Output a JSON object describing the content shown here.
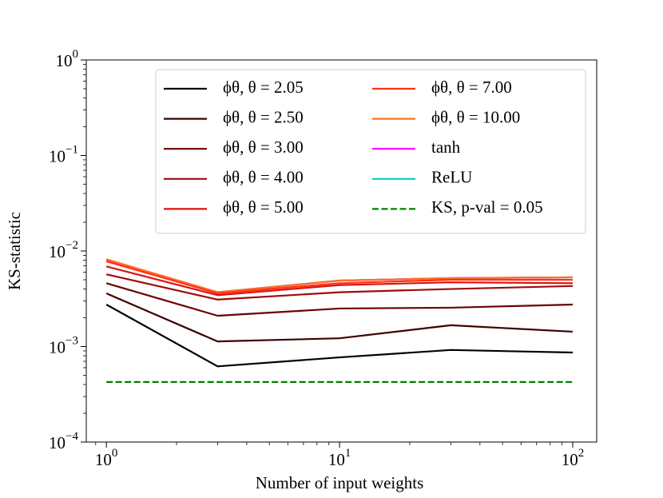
{
  "chart_data": {
    "type": "line",
    "xlabel": "Number of input weights",
    "ylabel": "KS-statistic",
    "x": [
      1,
      3,
      10,
      30,
      100
    ],
    "xlim": [
      0.82,
      126.7
    ],
    "ylim": [
      0.0001,
      1
    ],
    "xscale": "log",
    "yscale": "log",
    "xticks": [
      {
        "value": 1,
        "label": "10",
        "exponent": "0"
      },
      {
        "value": 10,
        "label": "10",
        "exponent": "1"
      },
      {
        "value": 100,
        "label": "10",
        "exponent": "2"
      }
    ],
    "yticks": [
      {
        "value": 0.0001,
        "label": "10",
        "exponent": "−4"
      },
      {
        "value": 0.001,
        "label": "10",
        "exponent": "−3"
      },
      {
        "value": 0.01,
        "label": "10",
        "exponent": "−2"
      },
      {
        "value": 0.1,
        "label": "10",
        "exponent": "−1"
      },
      {
        "value": 1,
        "label": "10",
        "exponent": "0"
      }
    ],
    "legend": "upper right",
    "series": [
      {
        "name": "ϕθ, θ = 2.05",
        "color": "#000000",
        "values": [
          0.00275,
          0.00062,
          0.00077,
          0.00092,
          0.000865
        ]
      },
      {
        "name": "ϕθ, θ = 2.50",
        "color": "#3d0000",
        "values": [
          0.0036,
          0.00113,
          0.00122,
          0.00167,
          0.00143
        ]
      },
      {
        "name": "ϕθ, θ = 3.00",
        "color": "#6b0000",
        "values": [
          0.0046,
          0.0021,
          0.0025,
          0.00255,
          0.00275
        ]
      },
      {
        "name": "ϕθ, θ = 4.00",
        "color": "#9e0b0b",
        "values": [
          0.0057,
          0.0031,
          0.0037,
          0.004,
          0.0043
        ]
      },
      {
        "name": "ϕθ, θ = 5.00",
        "color": "#d81212",
        "values": [
          0.0069,
          0.00345,
          0.0044,
          0.0047,
          0.0046
        ]
      },
      {
        "name": "ϕθ, θ = 7.00",
        "color": "#ff3212",
        "values": [
          0.0078,
          0.0036,
          0.0046,
          0.005,
          0.005
        ]
      },
      {
        "name": "ϕθ, θ = 10.00",
        "color": "#ff7020",
        "values": [
          0.0082,
          0.0037,
          0.0049,
          0.0052,
          0.0053
        ]
      },
      {
        "name": "tanh",
        "color": "#ff00ff",
        "values": [
          0.0081,
          0.0037,
          0.0049,
          0.0052,
          0.0053
        ]
      },
      {
        "name": "ReLU",
        "color": "#00cccc",
        "values": [
          0.0081,
          0.0037,
          0.0049,
          0.0052,
          0.0053
        ]
      },
      {
        "name": "KS, p-val = 0.05",
        "color": "#008000",
        "dashed": true,
        "values": [
          0.000425,
          0.000425,
          0.000425,
          0.000425,
          0.000425
        ]
      }
    ]
  }
}
